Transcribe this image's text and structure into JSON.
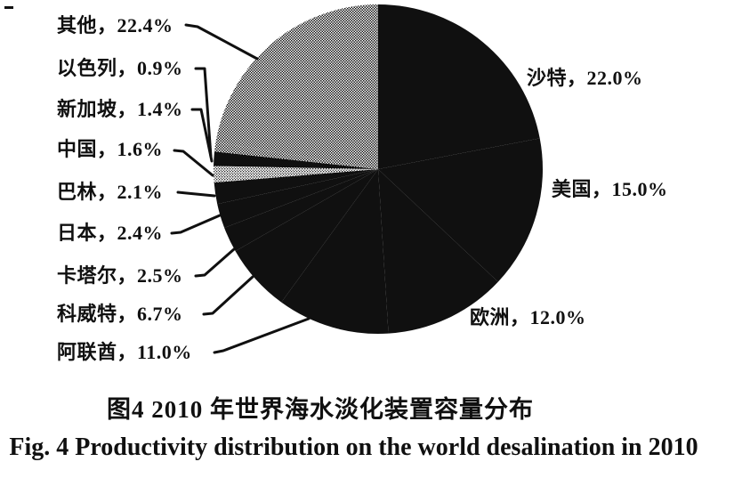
{
  "figure": {
    "caption_cn": "图4  2010 年世界海水淡化装置容量分布",
    "caption_en": "Fig. 4  Productivity distribution on the world desalination in 2010"
  },
  "chart_data": {
    "type": "pie",
    "title": "2010 年世界海水淡化装置容量分布",
    "title_en": "Productivity distribution on the world desalination in 2010",
    "unit": "%",
    "start_angle_deg": 0,
    "direction": "clockwise",
    "legend_position": "none",
    "colors": {
      "ink": "#101010",
      "paper": "#ffffff"
    },
    "slices": [
      {
        "key": "saudi-arabia",
        "name": "沙特",
        "value": 22.0,
        "display": "沙特，22.0%",
        "fill": "black",
        "label_side": "right"
      },
      {
        "key": "usa",
        "name": "美国",
        "value": 15.0,
        "display": "美国，15.0%",
        "fill": "black",
        "label_side": "right"
      },
      {
        "key": "europe",
        "name": "欧洲",
        "value": 12.0,
        "display": "欧洲，12.0%",
        "fill": "black",
        "label_side": "right"
      },
      {
        "key": "uae",
        "name": "阿联酋",
        "value": 11.0,
        "display": "阿联酋，11.0%",
        "fill": "black",
        "label_side": "left"
      },
      {
        "key": "kuwait",
        "name": "科威特",
        "value": 6.7,
        "display": "科威特，6.7%",
        "fill": "black",
        "label_side": "left"
      },
      {
        "key": "qatar",
        "name": "卡塔尔",
        "value": 2.5,
        "display": "卡塔尔，2.5%",
        "fill": "black",
        "label_side": "left"
      },
      {
        "key": "japan",
        "name": "日本",
        "value": 2.4,
        "display": "日本，2.4%",
        "fill": "black",
        "label_side": "left"
      },
      {
        "key": "bahrain",
        "name": "巴林",
        "value": 2.1,
        "display": "巴林，2.1%",
        "fill": "black",
        "label_side": "left"
      },
      {
        "key": "china",
        "name": "中国",
        "value": 1.6,
        "display": "中国，1.6%",
        "fill": "halftone-light",
        "label_side": "left"
      },
      {
        "key": "singapore",
        "name": "新加坡",
        "value": 1.4,
        "display": "新加坡，1.4%",
        "fill": "black",
        "label_side": "left"
      },
      {
        "key": "israel",
        "name": "以色列",
        "value": 0.9,
        "display": "以色列，0.9%",
        "fill": "halftone",
        "label_side": "left"
      },
      {
        "key": "others",
        "name": "其他",
        "value": 22.4,
        "display": "其他，22.4%",
        "fill": "halftone",
        "label_side": "left"
      }
    ]
  }
}
